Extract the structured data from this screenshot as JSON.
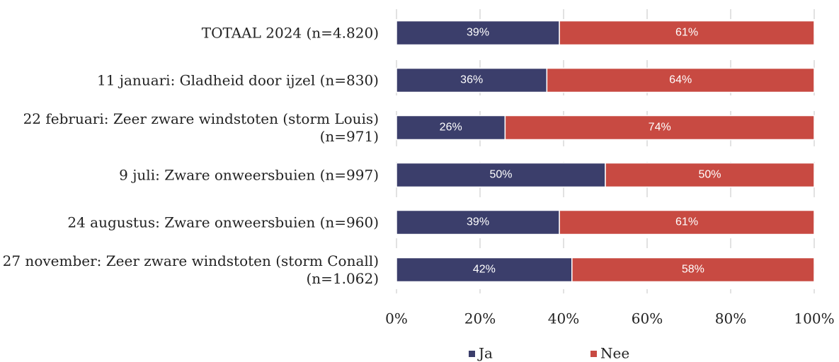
{
  "chart_data": {
    "type": "stacked_barh",
    "categories": [
      "TOTAAL 2024 (n=4.820)",
      "11 januari: Gladheid door ijzel (n=830)",
      "22 februari: Zeer zware windstoten (storm Louis) (n=971)",
      "9 juli: Zware onweersbuien (n=997)",
      "24 augustus: Zware onweersbuien (n=960)",
      "27 november: Zeer zware windstoten (storm Conall) (n=1.062)"
    ],
    "series": [
      {
        "name": "Ja",
        "color": "#3b3e6b",
        "values": [
          39,
          36,
          26,
          50,
          39,
          42
        ],
        "value_labels": [
          "39%",
          "36%",
          "26%",
          "50%",
          "39%",
          "42%"
        ]
      },
      {
        "name": "Nee",
        "color": "#c84a42",
        "values": [
          61,
          64,
          74,
          50,
          61,
          58
        ],
        "value_labels": [
          "61%",
          "64%",
          "74%",
          "50%",
          "61%",
          "58%"
        ]
      }
    ],
    "xlim": [
      0,
      100
    ],
    "xticks": [
      {
        "value": 0,
        "label": "0%"
      },
      {
        "value": 20,
        "label": "20%"
      },
      {
        "value": 40,
        "label": "40%"
      },
      {
        "value": 60,
        "label": "60%"
      },
      {
        "value": 80,
        "label": "80%"
      },
      {
        "value": 100,
        "label": "100%"
      }
    ],
    "grid": true,
    "legend": "bottom"
  }
}
